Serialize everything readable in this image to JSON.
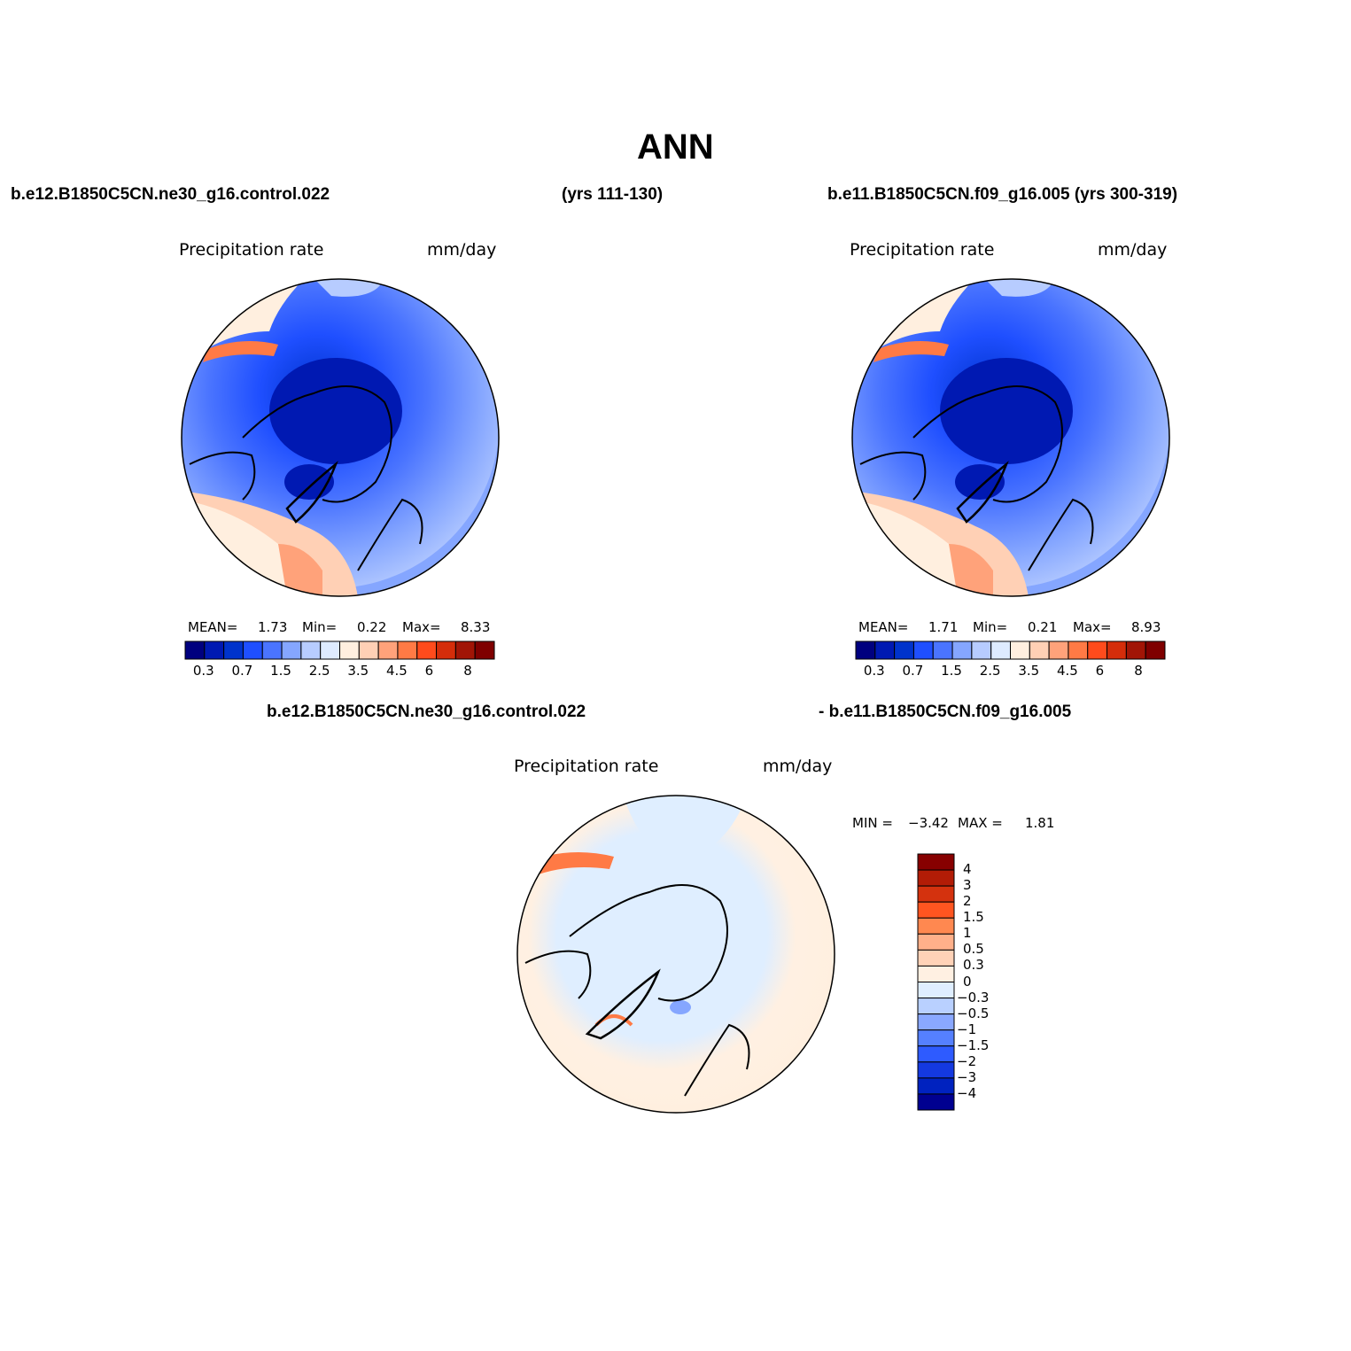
{
  "title": "ANN",
  "panel1": {
    "case": "b.e12.B1850C5CN.ne30_g16.control.022",
    "years": "(yrs 111-130)",
    "variable": "Precipitation  rate",
    "units": "mm/day",
    "mean_label": "MEAN=",
    "mean": "1.73",
    "min_label": "Min=",
    "min": "0.22",
    "max_label": "Max=",
    "max": "8.33"
  },
  "panel2": {
    "case_years": "b.e11.B1850C5CN.f09_g16.005 (yrs 300-319)",
    "variable": "Precipitation  rate",
    "units": "mm/day",
    "mean_label": "MEAN=",
    "mean": "1.71",
    "min_label": "Min=",
    "min": "0.21",
    "max_label": "Max=",
    "max": "8.93"
  },
  "panel3": {
    "case_a": "b.e12.B1850C5CN.ne30_g16.control.022",
    "case_b": "- b.e11.B1850C5CN.f09_g16.005",
    "variable": "Precipitation  rate",
    "units": "mm/day",
    "min_label": "MIN =",
    "min": "−3.42",
    "max_label": "MAX =",
    "max": "1.81"
  },
  "abs_colorbar": {
    "colors": [
      "#00007f",
      "#0019b2",
      "#0033cc",
      "#1f4fff",
      "#4a74ff",
      "#85a6ff",
      "#b7ccff",
      "#deebff",
      "#ffefdf",
      "#ffd0b5",
      "#ffa27a",
      "#ff7a45",
      "#ff4b1c",
      "#d42d0a",
      "#a11506",
      "#7f0000"
    ],
    "tick_labels": [
      "0.3",
      "0.7",
      "1.5",
      "2.5",
      "3.5",
      "4.5",
      "6",
      "8"
    ]
  },
  "diff_colorbar": {
    "colors_top_to_bottom": [
      "#870000",
      "#b21c06",
      "#d4320e",
      "#ff5520",
      "#ff8850",
      "#ffb08a",
      "#ffd2b7",
      "#fff0e2",
      "#dfeeff",
      "#b9d0ff",
      "#8aa8ff",
      "#5580ff",
      "#2e5bff",
      "#1439e0",
      "#0022bf",
      "#000090"
    ],
    "tick_labels": [
      "4",
      "3",
      "2",
      "1.5",
      "1",
      "0.5",
      "0.3",
      "0",
      "−0.3",
      "−0.5",
      "−1",
      "−1.5",
      "−2",
      "−3",
      "−4"
    ]
  }
}
